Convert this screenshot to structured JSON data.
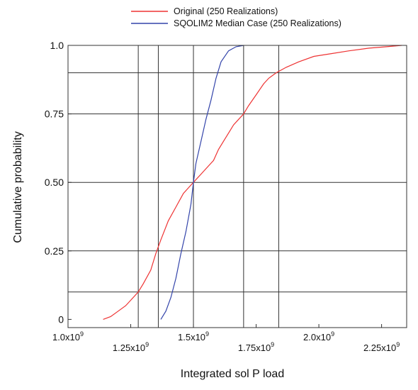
{
  "chart_data": {
    "type": "line",
    "title": "",
    "xlabel": "Integrated sol P load",
    "ylabel": "Cumulative probability",
    "xlim": [
      1000000000.0,
      2350000000.0
    ],
    "ylim": [
      -0.03,
      1.0
    ],
    "x_tick_values": [
      1000000000.0,
      1250000000.0,
      1500000000.0,
      1750000000.0,
      2000000000.0,
      2250000000.0
    ],
    "x_tick_mantissas": [
      "1.0x10",
      "1.25x10",
      "1.5x10",
      "1.75x10",
      "2.0x10",
      "2.25x10"
    ],
    "x_tick_exponent": "9",
    "y_tick_values": [
      0,
      0.25,
      0.5,
      0.75,
      1.0
    ],
    "y_tick_labels": [
      "0",
      "0.25",
      "0.50",
      "0.75",
      "1.0"
    ],
    "legend_position": "top-center",
    "grid": {
      "vertical_x": [
        1280000000.0,
        1360000000.0,
        1500000000.0,
        1700000000.0,
        1840000000.0
      ],
      "horizontal_y": [
        0.1,
        0.25,
        0.5,
        0.75,
        0.9
      ]
    },
    "series": [
      {
        "name": "Original (250 Realizations)",
        "color": "#ee3333",
        "x": [
          1140000000.0,
          1170000000.0,
          1200000000.0,
          1230000000.0,
          1260000000.0,
          1280000000.0,
          1300000000.0,
          1330000000.0,
          1350000000.0,
          1370000000.0,
          1400000000.0,
          1430000000.0,
          1460000000.0,
          1480000000.0,
          1500000000.0,
          1530000000.0,
          1560000000.0,
          1580000000.0,
          1600000000.0,
          1620000000.0,
          1640000000.0,
          1660000000.0,
          1680000000.0,
          1700000000.0,
          1720000000.0,
          1750000000.0,
          1780000000.0,
          1800000000.0,
          1830000000.0,
          1870000000.0,
          1920000000.0,
          1980000000.0,
          2050000000.0,
          2120000000.0,
          2200000000.0,
          2270000000.0,
          2330000000.0
        ],
        "y": [
          0.0,
          0.01,
          0.03,
          0.05,
          0.08,
          0.1,
          0.13,
          0.18,
          0.24,
          0.29,
          0.36,
          0.41,
          0.46,
          0.48,
          0.5,
          0.53,
          0.56,
          0.58,
          0.62,
          0.65,
          0.68,
          0.71,
          0.73,
          0.75,
          0.78,
          0.82,
          0.86,
          0.88,
          0.9,
          0.92,
          0.94,
          0.96,
          0.97,
          0.98,
          0.99,
          0.995,
          1.0
        ]
      },
      {
        "name": "SQOLIM2 Median Case (250 Realizations)",
        "color": "#3344aa",
        "x": [
          1370000000.0,
          1390000000.0,
          1410000000.0,
          1430000000.0,
          1450000000.0,
          1470000000.0,
          1490000000.0,
          1500000000.0,
          1510000000.0,
          1530000000.0,
          1550000000.0,
          1570000000.0,
          1590000000.0,
          1610000000.0,
          1640000000.0,
          1670000000.0,
          1700000000.0
        ],
        "y": [
          0.0,
          0.03,
          0.08,
          0.15,
          0.24,
          0.32,
          0.42,
          0.5,
          0.57,
          0.65,
          0.73,
          0.8,
          0.88,
          0.94,
          0.98,
          0.995,
          1.0
        ]
      }
    ]
  }
}
